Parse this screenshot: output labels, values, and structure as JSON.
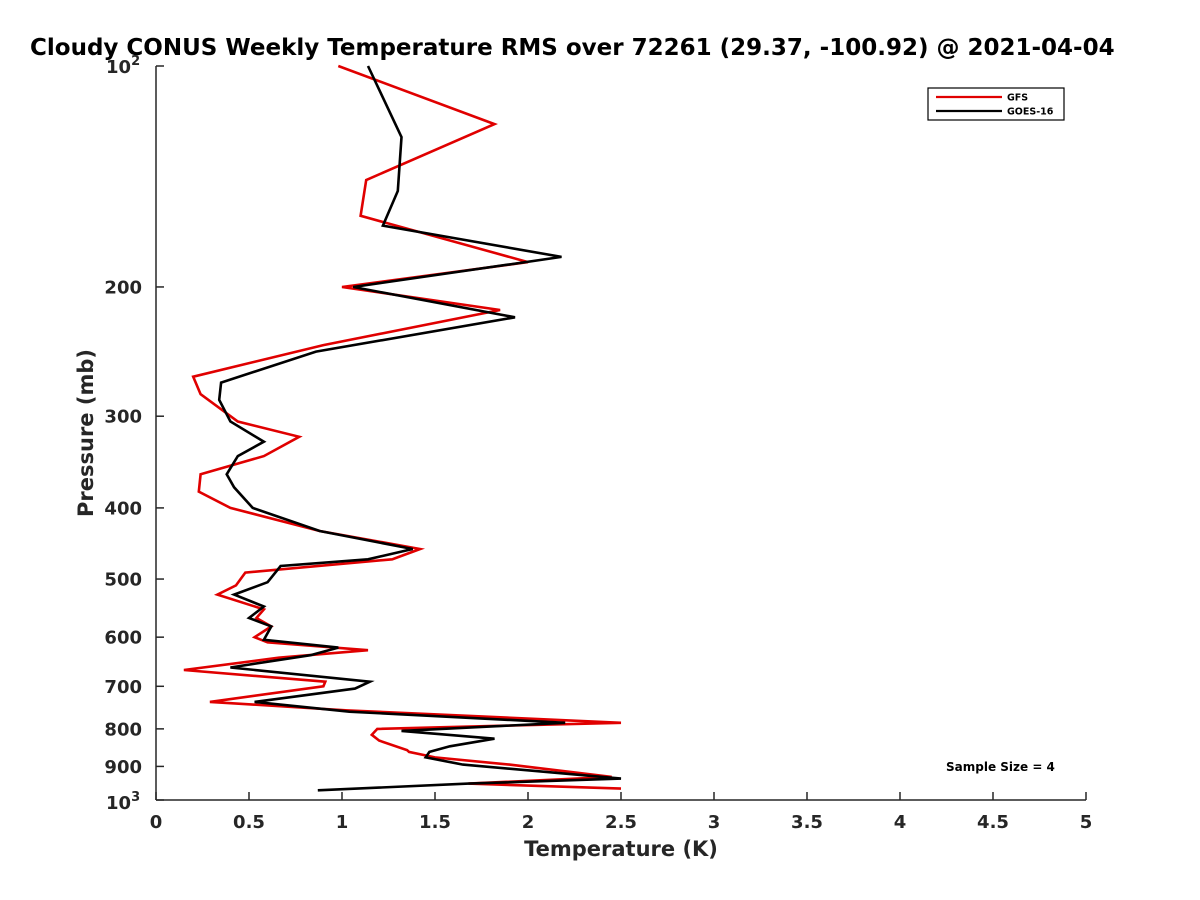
{
  "chart_data": {
    "type": "line",
    "title": "Cloudy CONUS Weekly Temperature RMS over 72261 (29.37, -100.92) @ 2021-04-04",
    "xlabel": "Temperature (K)",
    "ylabel": "Pressure (mb)",
    "xlim": [
      0,
      5
    ],
    "ylim": [
      100,
      1000
    ],
    "y_scale": "log",
    "y_reversed": true,
    "grid": false,
    "legend_position": "top-right",
    "x_ticks": [
      0,
      0.5,
      1,
      1.5,
      2,
      2.5,
      3,
      3.5,
      4,
      4.5,
      5
    ],
    "x_tick_labels": [
      "0",
      "0.5",
      "1",
      "1.5",
      "2",
      "2.5",
      "3",
      "3.5",
      "4",
      "4.5",
      "5"
    ],
    "y_ticks": [
      200,
      300,
      400,
      500,
      600,
      700,
      800,
      900
    ],
    "y_tick_labels": [
      "200",
      "300",
      "400",
      "500",
      "600",
      "700",
      "800",
      "900"
    ],
    "y_tick_pow_base": "10",
    "y_tick_top_exp": "2",
    "y_tick_bottom_exp": "3",
    "annotation": "Sample Size = 4",
    "series": [
      {
        "name": "GFS",
        "color": "#e00000",
        "x": [
          0.98,
          1.82,
          1.13,
          1.1,
          2.0,
          1.0,
          1.85,
          0.9,
          0.2,
          0.24,
          0.44,
          0.77,
          0.58,
          0.24,
          0.23,
          0.4,
          0.88,
          1.42,
          1.27,
          0.48,
          0.43,
          0.33,
          0.58,
          0.54,
          0.62,
          0.53,
          0.6,
          1.14,
          0.66,
          0.15,
          0.91,
          0.9,
          0.29,
          1.03,
          2.5,
          1.19,
          1.16,
          1.2,
          1.35,
          1.36,
          1.5,
          1.9,
          2.45,
          1.68,
          2.5
        ],
        "y": [
          100,
          120,
          143,
          160,
          185,
          200,
          215,
          240,
          265,
          280,
          305,
          320,
          340,
          360,
          380,
          400,
          430,
          455,
          470,
          490,
          510,
          525,
          550,
          565,
          580,
          600,
          610,
          625,
          640,
          665,
          690,
          700,
          735,
          755,
          785,
          800,
          815,
          830,
          855,
          860,
          875,
          895,
          930,
          950,
          965
        ]
      },
      {
        "name": "GOES-16",
        "color": "#000000",
        "x": [
          1.14,
          1.32,
          1.3,
          1.22,
          2.18,
          1.06,
          1.93,
          0.86,
          0.35,
          0.34,
          0.4,
          0.58,
          0.44,
          0.38,
          0.42,
          0.52,
          0.88,
          1.38,
          1.14,
          0.67,
          0.6,
          0.42,
          0.58,
          0.5,
          0.62,
          0.58,
          0.98,
          0.83,
          0.4,
          1.15,
          1.07,
          0.53,
          1.04,
          2.2,
          1.32,
          1.82,
          1.58,
          1.47,
          1.45,
          1.65,
          2.5,
          1.68,
          0.87
        ],
        "y": [
          100,
          125,
          148,
          165,
          182,
          200,
          220,
          245,
          270,
          285,
          305,
          325,
          340,
          360,
          375,
          400,
          430,
          455,
          470,
          480,
          505,
          525,
          545,
          565,
          580,
          605,
          620,
          635,
          660,
          690,
          705,
          735,
          758,
          785,
          805,
          825,
          845,
          860,
          875,
          895,
          935,
          950,
          970
        ]
      }
    ]
  }
}
